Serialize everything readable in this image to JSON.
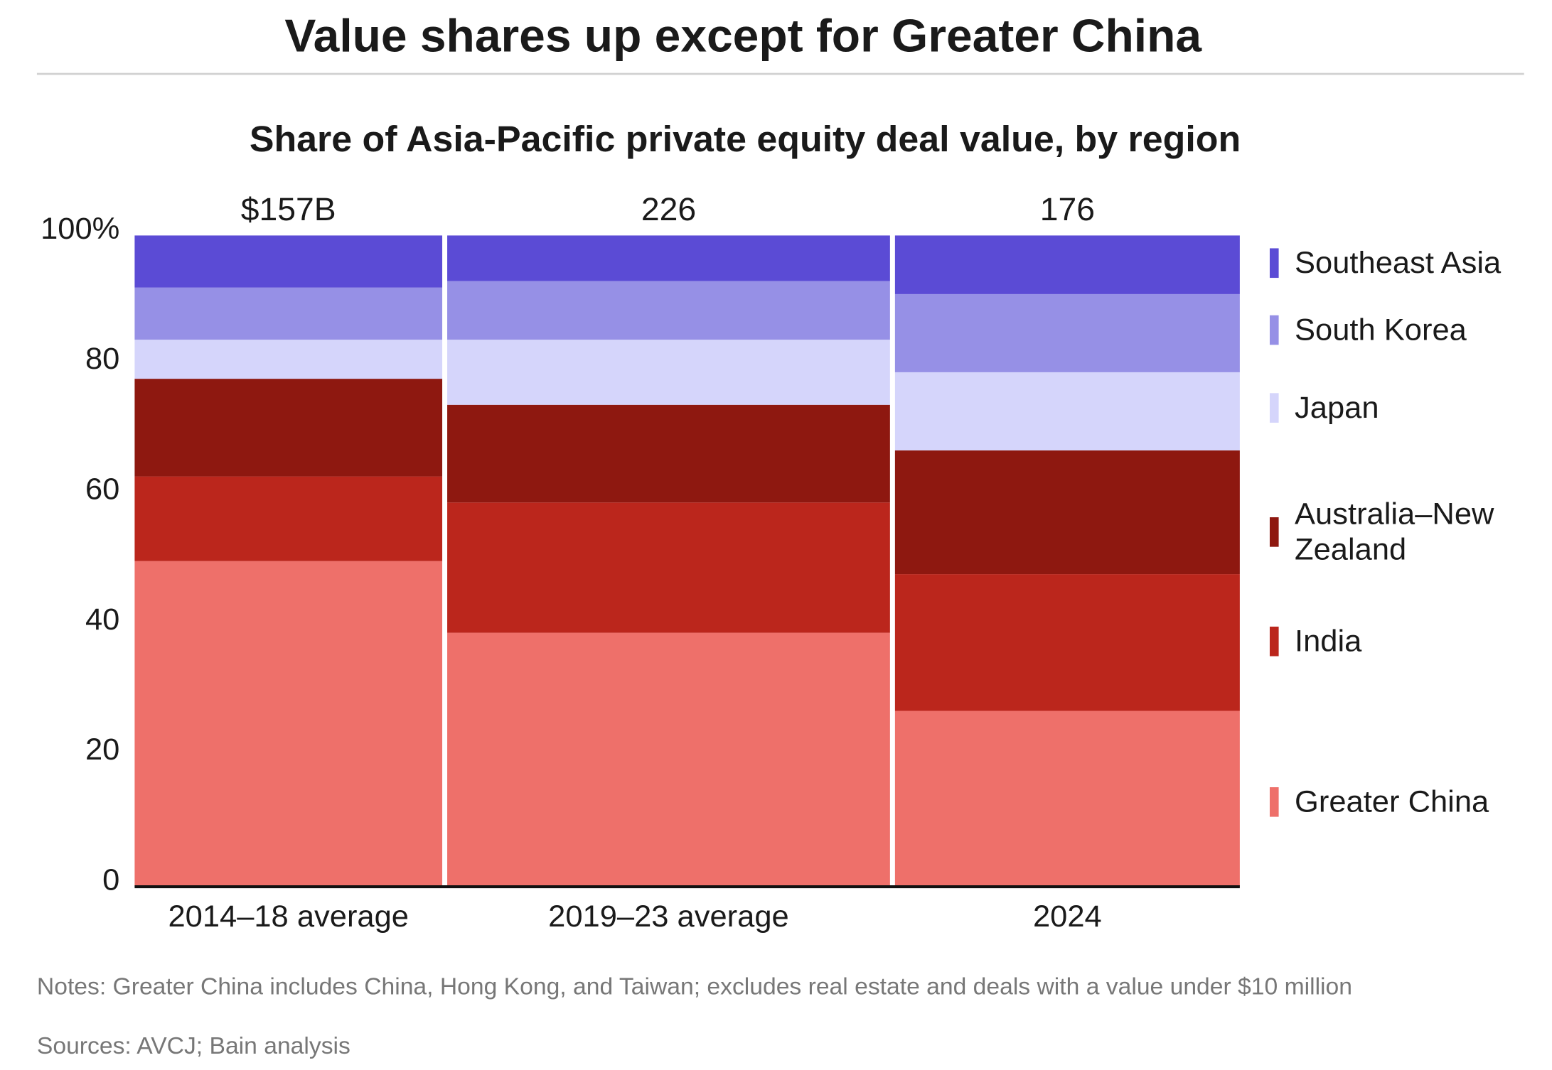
{
  "chart_data": {
    "type": "marimekko",
    "title": "Value shares up except for Greater China",
    "subtitle": "Share of Asia-Pacific private equity deal value, by region",
    "categories": [
      "2014–18 average",
      "2019–23 average",
      "2024"
    ],
    "totals": [
      157,
      226,
      176
    ],
    "total_labels": [
      "$157B",
      "226",
      "176"
    ],
    "series": [
      {
        "name": "Greater China",
        "color": "#ee706a",
        "values": [
          50,
          39,
          27
        ]
      },
      {
        "name": "India",
        "color": "#bb261c",
        "values": [
          13,
          20,
          21
        ]
      },
      {
        "name": "Australia–New Zealand",
        "color": "#8e1810",
        "values": [
          15,
          15,
          19
        ]
      },
      {
        "name": "Japan",
        "color": "#d5d5fb",
        "values": [
          6,
          10,
          12
        ]
      },
      {
        "name": "South Korea",
        "color": "#9690e6",
        "values": [
          8,
          9,
          12
        ]
      },
      {
        "name": "Southeast Asia",
        "color": "#5b4bd5",
        "values": [
          8,
          7,
          9
        ]
      }
    ],
    "ylim": [
      0,
      100
    ],
    "yticks": [
      0,
      20,
      40,
      60,
      80,
      {
        "value": 100,
        "label": "100%"
      }
    ],
    "notes": "Notes: Greater China includes China, Hong Kong, and Taiwan; excludes real estate and deals with a value under $10 million",
    "sources": "Sources: AVCJ; Bain analysis"
  }
}
